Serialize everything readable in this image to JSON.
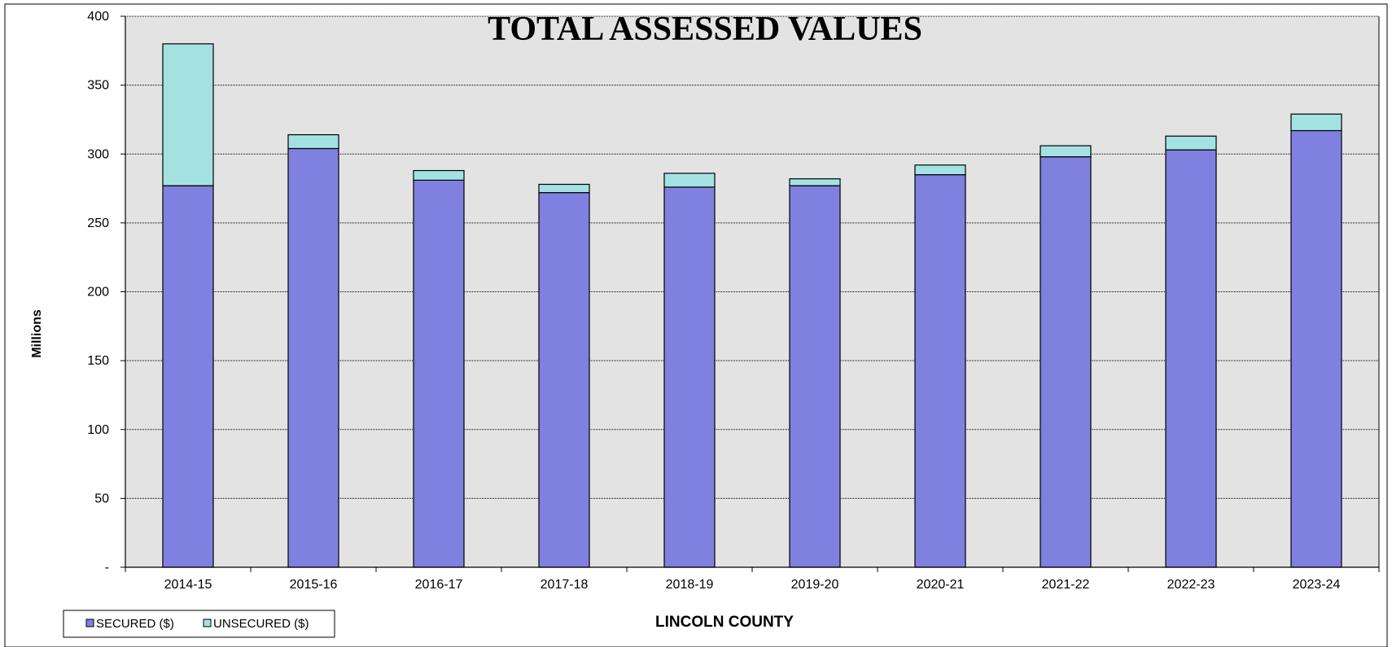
{
  "chart_data": {
    "type": "bar",
    "stacked": true,
    "title": "TOTAL ASSESSED VALUES",
    "xlabel": "LINCOLN COUNTY",
    "ylabel": "Millions",
    "categories": [
      "2014-15",
      "2015-16",
      "2016-17",
      "2017-18",
      "2018-19",
      "2019-20",
      "2020-21",
      "2021-22",
      "2022-23",
      "2023-24"
    ],
    "series": [
      {
        "name": "SECURED ($)",
        "color": "#8080e0",
        "values": [
          277,
          304,
          281,
          272,
          276,
          277,
          285,
          298,
          303,
          317
        ]
      },
      {
        "name": "UNSECURED ($)",
        "color": "#a4e2e2",
        "values": [
          103,
          10,
          7,
          6,
          10,
          5,
          7,
          8,
          10,
          12
        ]
      }
    ],
    "ylim": [
      0,
      400
    ],
    "yticks": [
      0,
      50,
      100,
      150,
      200,
      250,
      300,
      350,
      400
    ],
    "ytick_labels": [
      "-",
      "50",
      "100",
      "150",
      "200",
      "250",
      "300",
      "350",
      "400"
    ],
    "grid": true,
    "legend_position": "bottom-left",
    "plot_background": "#e3e3e3"
  }
}
